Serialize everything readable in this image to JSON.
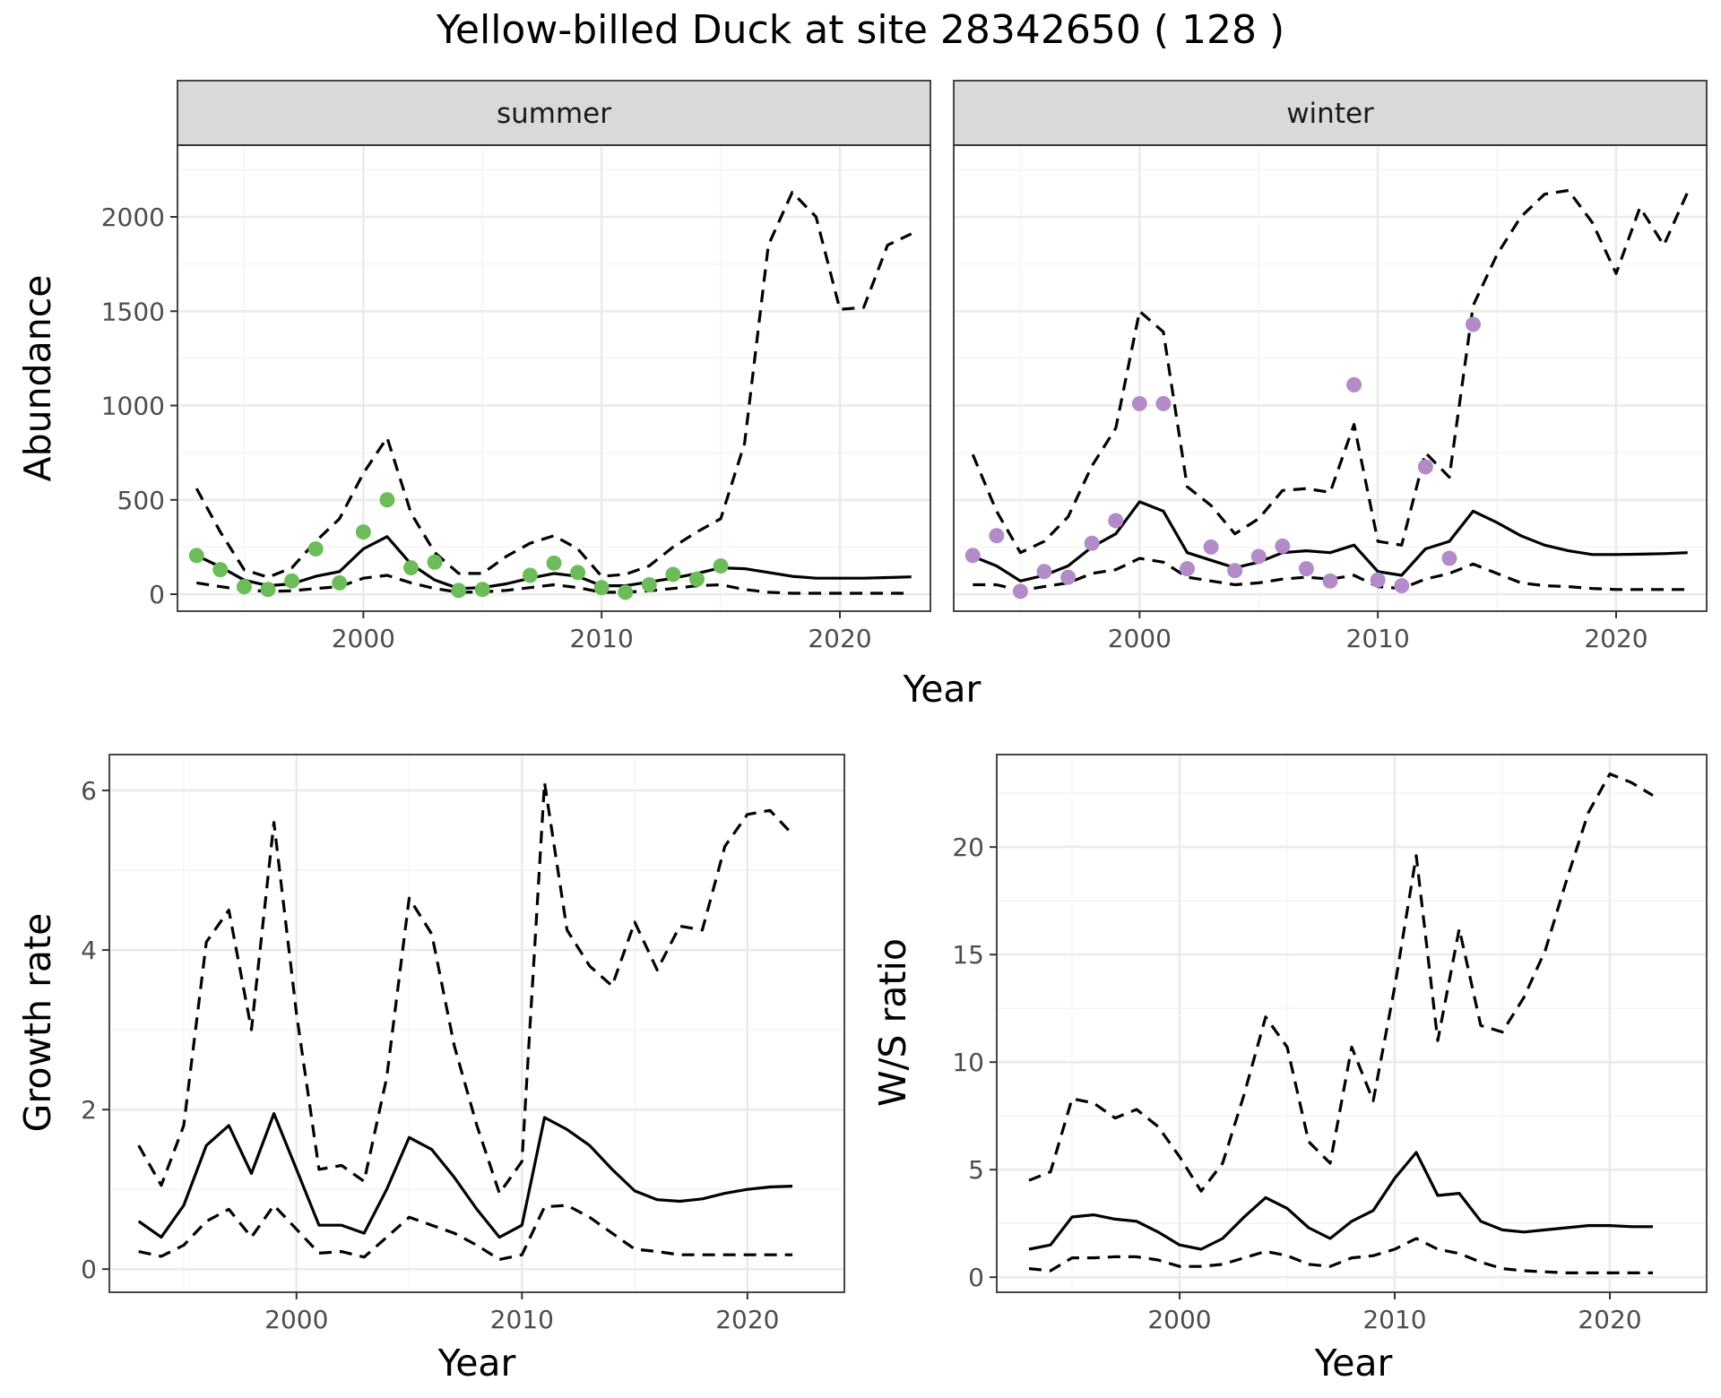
{
  "title": "Yellow-billed Duck at site 28342650 ( 128 )",
  "chart_data": [
    {
      "id": "abundance",
      "type": "line",
      "ylabel": "Abundance",
      "xlabel": "Year",
      "xlim": [
        1992.2,
        2023.8
      ],
      "ylim": [
        -90,
        2380
      ],
      "x_ticks": [
        2000,
        2010,
        2020
      ],
      "y_ticks": [
        0,
        500,
        1000,
        1500,
        2000
      ],
      "grid": true,
      "facets": [
        {
          "label": "summer",
          "point_color": "#6cbd5a",
          "years": [
            1993,
            1994,
            1995,
            1996,
            1997,
            1998,
            1999,
            2000,
            2001,
            2002,
            2003,
            2004,
            2005,
            2006,
            2007,
            2008,
            2009,
            2010,
            2011,
            2012,
            2013,
            2014,
            2015,
            2016,
            2017,
            2018,
            2019,
            2020,
            2021,
            2022,
            2023
          ],
          "estimate": [
            205,
            145,
            75,
            45,
            55,
            95,
            120,
            240,
            305,
            160,
            75,
            30,
            35,
            55,
            85,
            110,
            95,
            45,
            45,
            65,
            85,
            110,
            140,
            135,
            115,
            95,
            85,
            85,
            85,
            88,
            92
          ],
          "lower": [
            60,
            40,
            22,
            15,
            18,
            30,
            40,
            85,
            100,
            60,
            30,
            10,
            12,
            20,
            35,
            50,
            35,
            10,
            10,
            18,
            30,
            45,
            50,
            25,
            10,
            5,
            5,
            5,
            5,
            5,
            5
          ],
          "upper": [
            560,
            330,
            130,
            90,
            140,
            280,
            400,
            640,
            830,
            430,
            220,
            110,
            110,
            200,
            270,
            310,
            240,
            95,
            105,
            150,
            250,
            330,
            400,
            800,
            1850,
            2130,
            2000,
            1510,
            1520,
            1850,
            1910
          ],
          "observed": [
            [
              1993,
              205
            ],
            [
              1994,
              130
            ],
            [
              1995,
              40
            ],
            [
              1996,
              25
            ],
            [
              1997,
              70
            ],
            [
              1998,
              240
            ],
            [
              1999,
              60
            ],
            [
              2000,
              330
            ],
            [
              2001,
              500
            ],
            [
              2002,
              140
            ],
            [
              2003,
              170
            ],
            [
              2004,
              20
            ],
            [
              2005,
              25
            ],
            [
              2007,
              100
            ],
            [
              2008,
              165
            ],
            [
              2009,
              115
            ],
            [
              2010,
              35
            ],
            [
              2011,
              10
            ],
            [
              2012,
              50
            ],
            [
              2013,
              105
            ],
            [
              2014,
              80
            ],
            [
              2015,
              150
            ]
          ]
        },
        {
          "label": "winter",
          "point_color": "#b28bc8",
          "years": [
            1993,
            1994,
            1995,
            1996,
            1997,
            1998,
            1999,
            2000,
            2001,
            2002,
            2003,
            2004,
            2005,
            2006,
            2007,
            2008,
            2009,
            2010,
            2011,
            2012,
            2013,
            2014,
            2015,
            2016,
            2017,
            2018,
            2019,
            2020,
            2021,
            2022,
            2023
          ],
          "estimate": [
            200,
            150,
            70,
            100,
            150,
            250,
            320,
            490,
            440,
            220,
            180,
            140,
            170,
            220,
            230,
            220,
            260,
            120,
            100,
            240,
            280,
            440,
            380,
            310,
            260,
            230,
            210,
            210,
            212,
            215,
            220
          ],
          "lower": [
            50,
            50,
            20,
            40,
            60,
            110,
            130,
            190,
            170,
            90,
            70,
            50,
            60,
            80,
            90,
            80,
            100,
            40,
            30,
            80,
            110,
            160,
            110,
            60,
            45,
            40,
            30,
            25,
            25,
            25,
            25
          ],
          "upper": [
            740,
            440,
            220,
            280,
            410,
            680,
            880,
            1500,
            1390,
            570,
            470,
            320,
            400,
            550,
            560,
            540,
            900,
            280,
            260,
            750,
            620,
            1530,
            1800,
            2000,
            2120,
            2140,
            1970,
            1700,
            2050,
            1850,
            2130
          ],
          "observed": [
            [
              1993,
              205
            ],
            [
              1994,
              310
            ],
            [
              1995,
              15
            ],
            [
              1996,
              120
            ],
            [
              1997,
              90
            ],
            [
              1998,
              270
            ],
            [
              1999,
              390
            ],
            [
              2000,
              1010
            ],
            [
              2001,
              1010
            ],
            [
              2002,
              135
            ],
            [
              2003,
              250
            ],
            [
              2004,
              125
            ],
            [
              2005,
              200
            ],
            [
              2006,
              255
            ],
            [
              2007,
              135
            ],
            [
              2008,
              70
            ],
            [
              2009,
              1110
            ],
            [
              2010,
              75
            ],
            [
              2011,
              45
            ],
            [
              2012,
              675
            ],
            [
              2013,
              190
            ],
            [
              2014,
              1430
            ]
          ]
        }
      ]
    },
    {
      "id": "growth",
      "type": "line",
      "ylabel": "Growth rate",
      "xlabel": "Year",
      "xlim": [
        1991.7,
        2024.3
      ],
      "ylim": [
        -0.29,
        6.45
      ],
      "x_ticks": [
        2000,
        2010,
        2020
      ],
      "y_ticks": [
        0,
        2,
        4,
        6
      ],
      "grid": true,
      "years": [
        1993,
        1994,
        1995,
        1996,
        1997,
        1998,
        1999,
        2000,
        2001,
        2002,
        2003,
        2004,
        2005,
        2006,
        2007,
        2008,
        2009,
        2010,
        2011,
        2012,
        2013,
        2014,
        2015,
        2016,
        2017,
        2018,
        2019,
        2020,
        2021,
        2022
      ],
      "estimate": [
        0.6,
        0.4,
        0.8,
        1.55,
        1.8,
        1.2,
        1.95,
        1.25,
        0.55,
        0.55,
        0.45,
        1.0,
        1.65,
        1.5,
        1.15,
        0.75,
        0.4,
        0.55,
        1.9,
        1.75,
        1.55,
        1.25,
        0.98,
        0.87,
        0.85,
        0.88,
        0.95,
        1.0,
        1.03,
        1.04
      ],
      "lower": [
        0.22,
        0.16,
        0.3,
        0.6,
        0.75,
        0.4,
        0.8,
        0.5,
        0.2,
        0.22,
        0.15,
        0.4,
        0.65,
        0.55,
        0.45,
        0.3,
        0.12,
        0.18,
        0.78,
        0.8,
        0.65,
        0.45,
        0.25,
        0.22,
        0.18,
        0.18,
        0.18,
        0.18,
        0.18,
        0.18
      ],
      "upper": [
        1.55,
        1.05,
        1.8,
        4.1,
        4.5,
        3.0,
        5.6,
        3.2,
        1.25,
        1.3,
        1.1,
        2.4,
        4.65,
        4.2,
        2.8,
        1.8,
        0.95,
        1.35,
        6.1,
        4.25,
        3.8,
        3.55,
        4.35,
        3.75,
        4.3,
        4.25,
        5.3,
        5.7,
        5.75,
        5.45
      ]
    },
    {
      "id": "ratio",
      "type": "line",
      "ylabel": "W/S ratio",
      "xlabel": "Year",
      "xlim": [
        1991.5,
        2024.5
      ],
      "ylim": [
        -0.7,
        24.3
      ],
      "x_ticks": [
        2000,
        2010,
        2020
      ],
      "y_ticks": [
        0,
        5,
        10,
        15,
        20
      ],
      "grid": true,
      "years": [
        1993,
        1994,
        1995,
        1996,
        1997,
        1998,
        1999,
        2000,
        2001,
        2002,
        2003,
        2004,
        2005,
        2006,
        2007,
        2008,
        2009,
        2010,
        2011,
        2012,
        2013,
        2014,
        2015,
        2016,
        2017,
        2018,
        2019,
        2020,
        2021,
        2022
      ],
      "estimate": [
        1.3,
        1.5,
        2.8,
        2.9,
        2.7,
        2.6,
        2.1,
        1.5,
        1.3,
        1.8,
        2.8,
        3.7,
        3.2,
        2.3,
        1.8,
        2.6,
        3.1,
        4.6,
        5.8,
        3.8,
        3.9,
        2.6,
        2.2,
        2.1,
        2.2,
        2.3,
        2.4,
        2.4,
        2.35,
        2.35
      ],
      "lower": [
        0.4,
        0.3,
        0.9,
        0.9,
        0.95,
        0.95,
        0.8,
        0.5,
        0.5,
        0.6,
        0.9,
        1.2,
        1.0,
        0.6,
        0.5,
        0.9,
        1.0,
        1.3,
        1.8,
        1.3,
        1.1,
        0.7,
        0.4,
        0.3,
        0.25,
        0.2,
        0.2,
        0.2,
        0.2,
        0.2
      ],
      "upper": [
        4.5,
        4.9,
        8.3,
        8.1,
        7.4,
        7.8,
        7.0,
        5.6,
        4.0,
        5.3,
        8.5,
        12.1,
        10.7,
        6.3,
        5.3,
        10.7,
        8.2,
        13.5,
        19.6,
        11.0,
        16.2,
        11.7,
        11.4,
        13.0,
        15.2,
        18.5,
        21.6,
        23.4,
        23.0,
        22.4
      ]
    }
  ]
}
